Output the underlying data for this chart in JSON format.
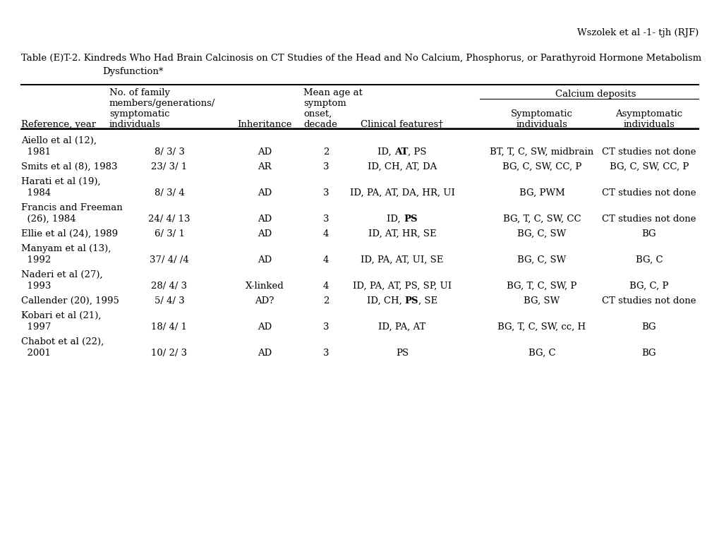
{
  "header": "Wszolek et al -1- tjh (RJF)",
  "title1": "Table (E)T-2. Kindreds Who Had Brain Calcinosis on CT Studies of the Head and No Calcium, Phosphorus, or Parathyroid Hormone Metabolism",
  "title2": "Dysfunction*",
  "rows": [
    {
      "ref1": "Aiello et al (12),",
      "ref2": "  1981",
      "family": "8/ 3/ 3",
      "inherit": "AD",
      "age": "2",
      "clinical": [
        [
          "ID, ",
          false
        ],
        [
          "AT",
          true
        ],
        [
          ", PS",
          false
        ]
      ],
      "symp": "BT, T, C, SW, midbrain",
      "asymp": "CT studies not done"
    },
    {
      "ref1": "Smits et al (8), 1983",
      "ref2": null,
      "family": "23/ 3/ 1",
      "inherit": "AR",
      "age": "3",
      "clinical": [
        [
          "ID, CH, AT, DA",
          false
        ]
      ],
      "symp": "BG, C, SW, CC, P",
      "asymp": "BG, C, SW, CC, P"
    },
    {
      "ref1": "Harati et al (19),",
      "ref2": "  1984",
      "family": "8/ 3/ 4",
      "inherit": "AD",
      "age": "3",
      "clinical": [
        [
          "ID, PA, AT, DA, HR, UI",
          false
        ]
      ],
      "symp": "BG, PWM",
      "asymp": "CT studies not done"
    },
    {
      "ref1": "Francis and Freeman",
      "ref2": "  (26), 1984",
      "family": "24/ 4/ 13",
      "inherit": "AD",
      "age": "3",
      "clinical": [
        [
          "ID, ",
          false
        ],
        [
          "PS",
          true
        ]
      ],
      "symp": "BG, T, C, SW, CC",
      "asymp": "CT studies not done"
    },
    {
      "ref1": "Ellie et al (24), 1989",
      "ref2": null,
      "family": "6/ 3/ 1",
      "inherit": "AD",
      "age": "4",
      "clinical": [
        [
          "ID, AT, HR, SE",
          false
        ]
      ],
      "symp": "BG, C, SW",
      "asymp": "BG"
    },
    {
      "ref1": "Manyam et al (13),",
      "ref2": "  1992",
      "family": "37/ 4/ /4",
      "inherit": "AD",
      "age": "4",
      "clinical": [
        [
          "ID, PA, AT, UI, SE",
          false
        ]
      ],
      "symp": "BG, C, SW",
      "asymp": "BG, C"
    },
    {
      "ref1": "Naderi et al (27),",
      "ref2": "  1993",
      "family": "28/ 4/ 3",
      "inherit": "X-linked",
      "age": "4",
      "clinical": [
        [
          "ID, PA, AT, PS, SP, UI",
          false
        ]
      ],
      "symp": "BG, T, C, SW, P",
      "asymp": "BG, C, P"
    },
    {
      "ref1": "Callender (20), 1995",
      "ref2": null,
      "family": "5/ 4/ 3",
      "inherit": "AD?",
      "age": "2",
      "clinical": [
        [
          "ID, CH, ",
          false
        ],
        [
          "PS",
          true
        ],
        [
          ", SE",
          false
        ]
      ],
      "symp": "BG, SW",
      "asymp": "CT studies not done"
    },
    {
      "ref1": "Kobari et al (21),",
      "ref2": "  1997",
      "family": "18/ 4/ 1",
      "inherit": "AD",
      "age": "3",
      "clinical": [
        [
          "ID, PA, AT",
          false
        ]
      ],
      "symp": "BG, T, C, SW, cc, H",
      "asymp": "BG"
    },
    {
      "ref1": "Chabot et al (22),",
      "ref2": "  2001",
      "family": "10/ 2/ 3",
      "inherit": "AD",
      "age": "3",
      "clinical": [
        [
          "PS",
          false
        ]
      ],
      "symp": "BG, C",
      "asymp": "BG"
    }
  ]
}
